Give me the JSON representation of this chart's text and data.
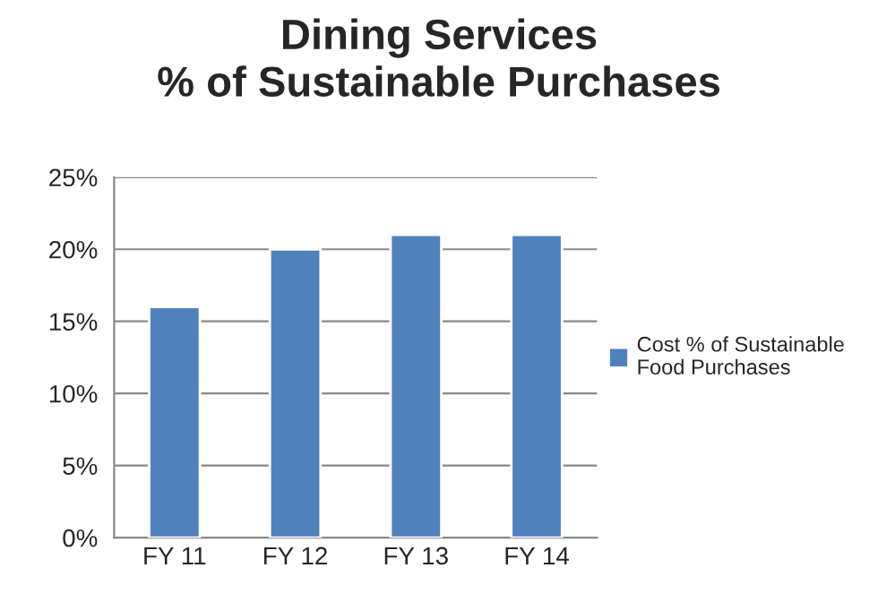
{
  "chart_data": {
    "type": "bar",
    "title": "Dining Services\n% of Sustainable Purchases",
    "categories": [
      "FY 11",
      "FY 12",
      "FY 13",
      "FY 14"
    ],
    "series": [
      {
        "name": "Cost % of Sustainable\nFood Purchases",
        "color": "#4f81bd",
        "values": [
          16,
          20,
          21,
          21
        ]
      }
    ],
    "ylim": [
      0,
      25
    ],
    "yticks": [
      {
        "value": 0,
        "label": "0%"
      },
      {
        "value": 5,
        "label": "5%"
      },
      {
        "value": 10,
        "label": "10%"
      },
      {
        "value": 15,
        "label": "15%"
      },
      {
        "value": 20,
        "label": "20%"
      },
      {
        "value": 25,
        "label": "25%"
      }
    ],
    "grid": "y",
    "legend": "right"
  }
}
